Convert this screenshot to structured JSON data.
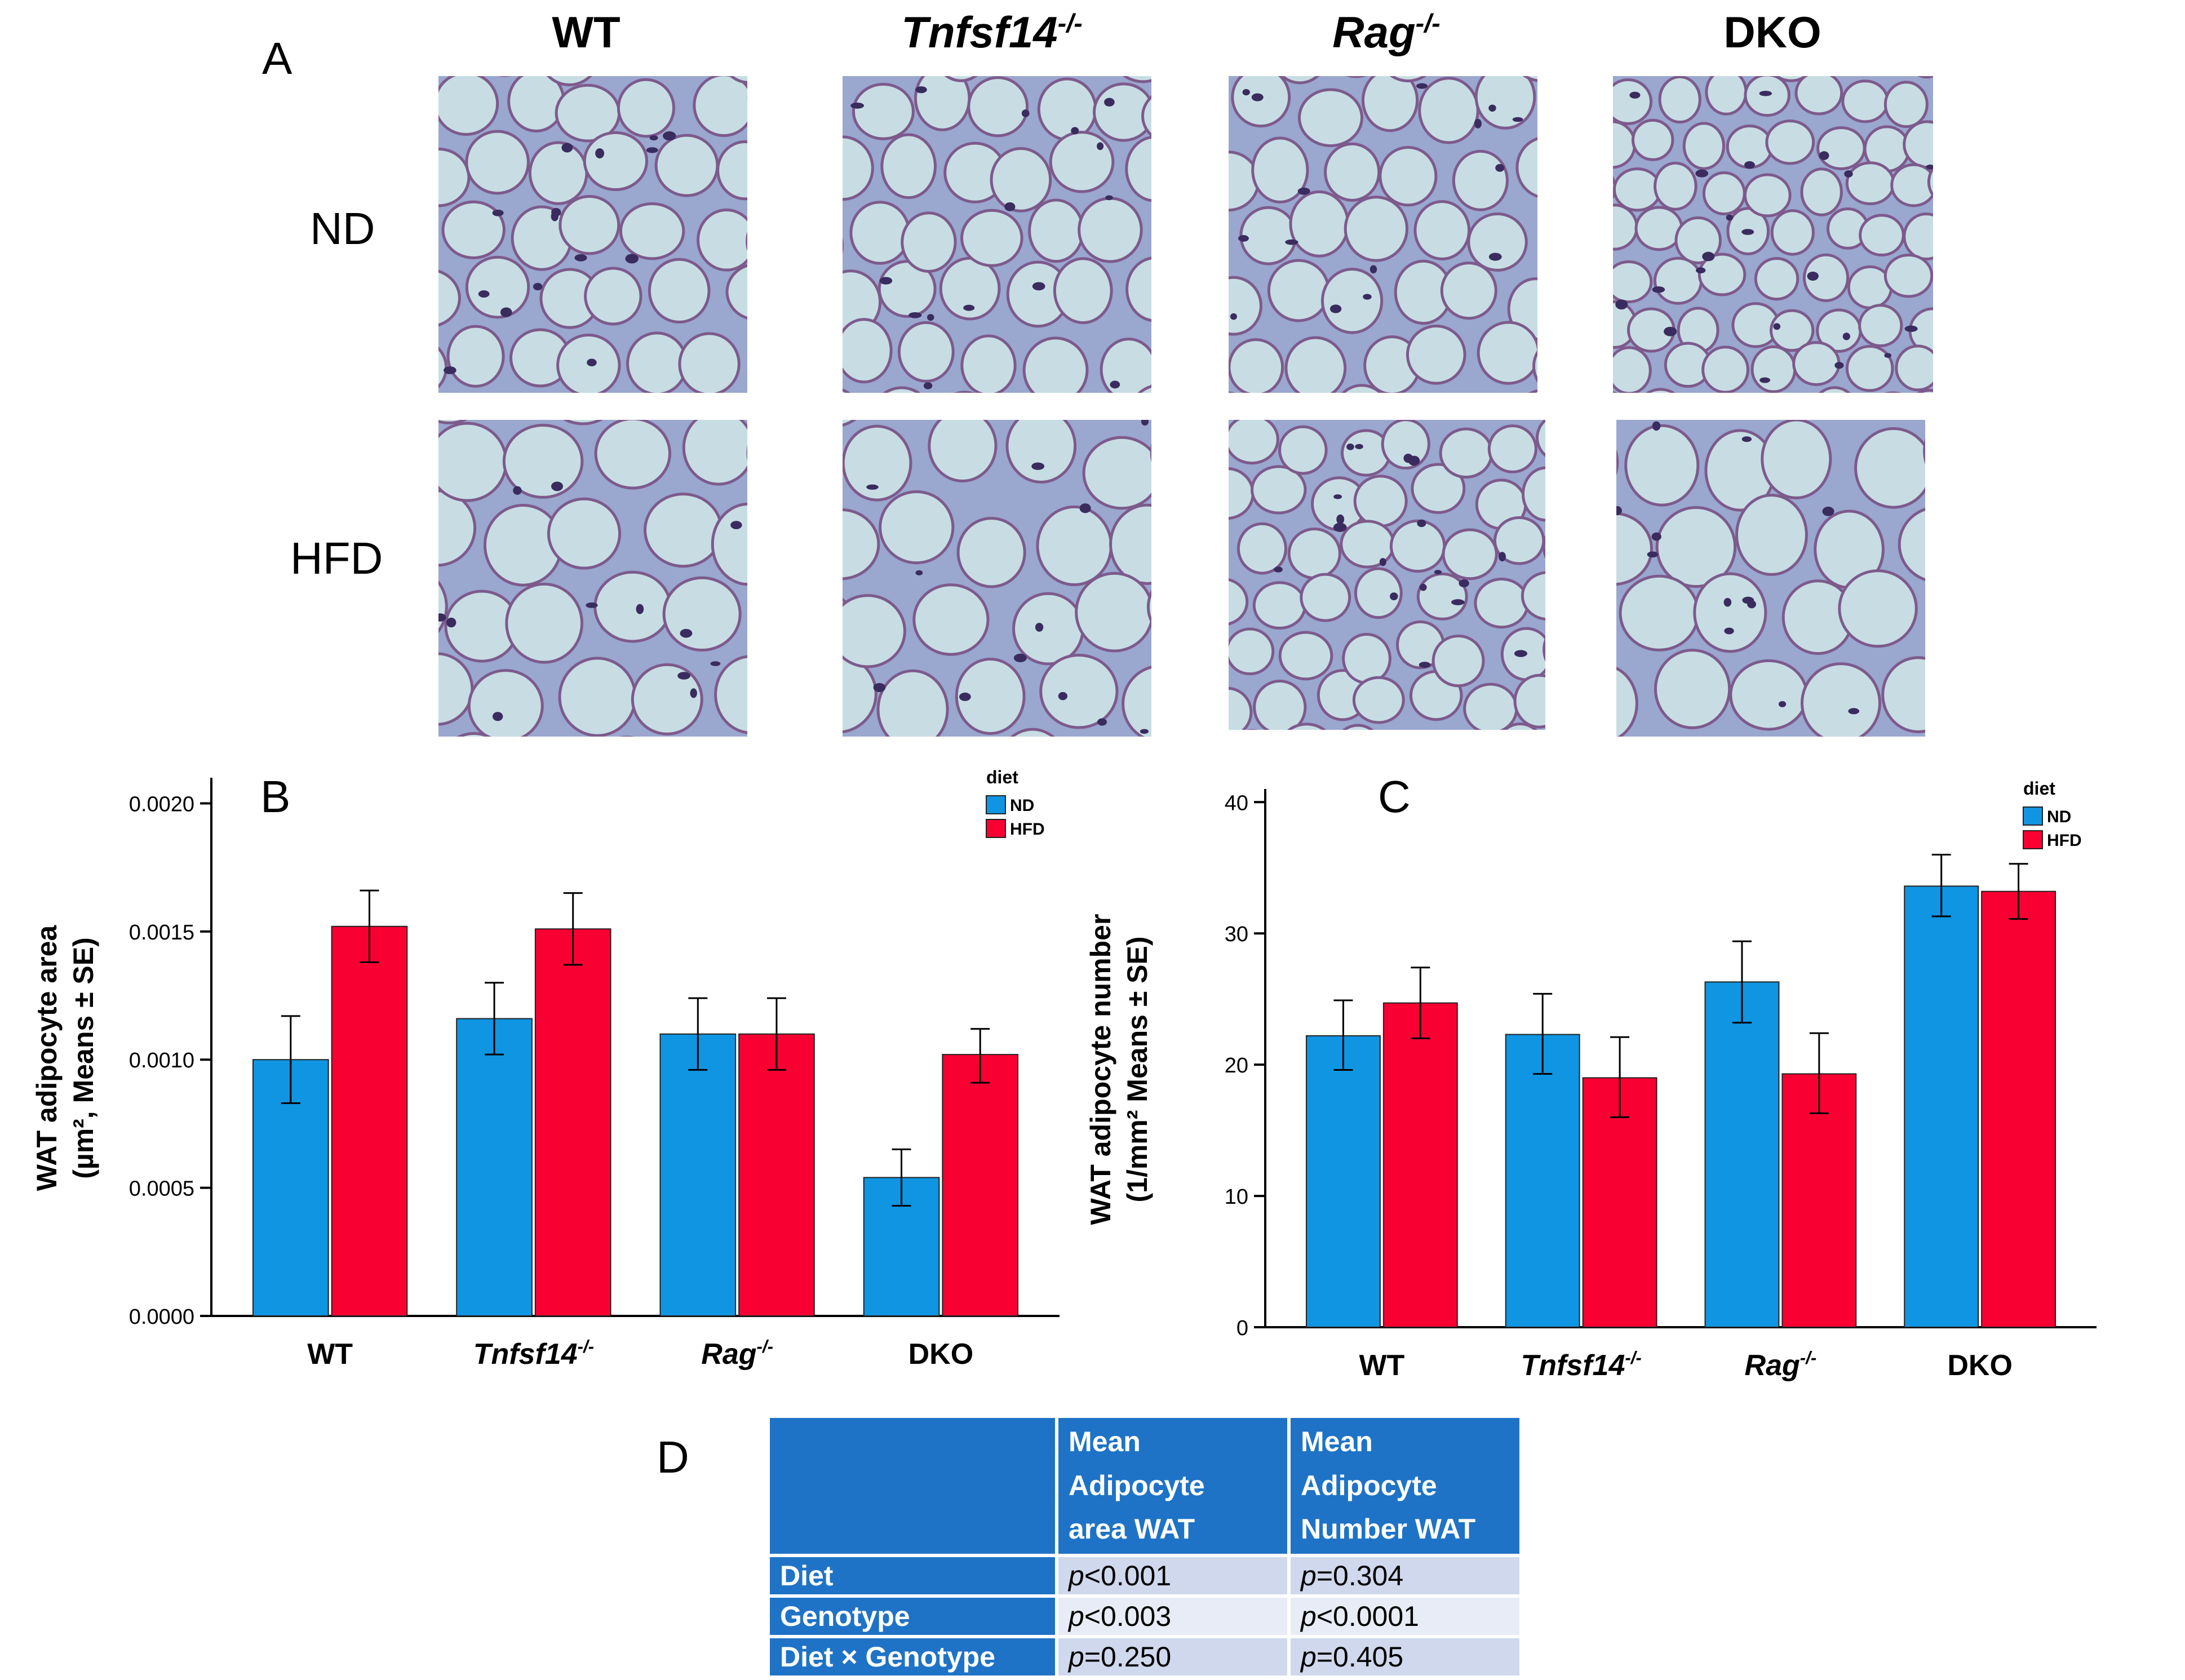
{
  "panel_labels": {
    "a": "A",
    "b": "B",
    "c": "C",
    "d": "D"
  },
  "panel_a": {
    "columns": [
      {
        "base": "WT",
        "sup": "",
        "italic": false
      },
      {
        "base": "Tnfsf14",
        "sup": "-/-",
        "italic": true
      },
      {
        "base": "Rag",
        "sup": "-/-",
        "italic": true
      },
      {
        "base": "DKO",
        "sup": "",
        "italic": false
      }
    ],
    "rows": [
      "ND",
      "HFD"
    ]
  },
  "colors": {
    "nd": "#0f95e2",
    "hfd": "#f90032",
    "table_header": "#1f73c6"
  },
  "chart_data": [
    {
      "type": "bar",
      "panel": "B",
      "title": "",
      "ylabel_line1": "WAT adipocyte area",
      "ylabel_line2": "(µm², Means ± SE)",
      "ylim": [
        0,
        0.0021
      ],
      "yticks": [
        0,
        0.0005,
        0.001,
        0.0015,
        0.002
      ],
      "ytick_labels": [
        "0.0000",
        "0.0005",
        "0.0010",
        "0.0015",
        "0.0020"
      ],
      "categories": [
        {
          "base": "WT",
          "sup": "",
          "italic": false
        },
        {
          "base": "Tnfsf14",
          "sup": "-/-",
          "italic": true
        },
        {
          "base": "Rag",
          "sup": "-/-",
          "italic": true
        },
        {
          "base": "DKO",
          "sup": "",
          "italic": false
        }
      ],
      "legend_title": "diet",
      "legend_position": "top-right",
      "series": [
        {
          "name": "ND",
          "values": [
            0.001,
            0.00116,
            0.0011,
            0.00054
          ],
          "err_low": [
            0.00083,
            0.00102,
            0.00096,
            0.00043
          ],
          "err_high": [
            0.00117,
            0.0013,
            0.00124,
            0.00065
          ]
        },
        {
          "name": "HFD",
          "values": [
            0.00152,
            0.00151,
            0.0011,
            0.00102
          ],
          "err_low": [
            0.00138,
            0.00137,
            0.00096,
            0.00091
          ],
          "err_high": [
            0.00166,
            0.00165,
            0.00124,
            0.00112
          ]
        }
      ]
    },
    {
      "type": "bar",
      "panel": "C",
      "title": "",
      "ylabel_line1": "WAT adipocyte number",
      "ylabel_line2": "(1/mm² Means ± SE)",
      "ylim": [
        0,
        41
      ],
      "yticks": [
        0,
        10,
        20,
        30,
        40
      ],
      "ytick_labels": [
        "0",
        "10",
        "20",
        "30",
        "40"
      ],
      "categories": [
        {
          "base": "WT",
          "sup": "",
          "italic": false
        },
        {
          "base": "Tnfsf14",
          "sup": "-/-",
          "italic": true
        },
        {
          "base": "Rag",
          "sup": "-/-",
          "italic": true
        },
        {
          "base": "DKO",
          "sup": "",
          "italic": false
        }
      ],
      "legend_title": "diet",
      "legend_position": "top-right",
      "series": [
        {
          "name": "ND",
          "values": [
            22.2,
            22.3,
            26.3,
            33.6
          ],
          "err_low": [
            19.6,
            19.3,
            23.2,
            31.3
          ],
          "err_high": [
            24.9,
            25.4,
            29.4,
            36.0
          ]
        },
        {
          "name": "HFD",
          "values": [
            24.7,
            19.0,
            19.3,
            33.2
          ],
          "err_low": [
            22.0,
            16.0,
            16.3,
            31.1
          ],
          "err_high": [
            27.4,
            22.1,
            22.4,
            35.3
          ]
        }
      ]
    }
  ],
  "table": {
    "col_headers": [
      "",
      "Mean Adipocyte area WAT",
      "Mean Adipocyte Number WAT"
    ],
    "rows": [
      {
        "label": "Diet",
        "area_p": "p",
        "area_v": "<0.001",
        "num_p": "p",
        "num_v": "=0.304"
      },
      {
        "label": "Genotype",
        "area_p": "p",
        "area_v": "<0.003",
        "num_p": "p",
        "num_v": "<0.0001"
      },
      {
        "label": "Diet × Genotype",
        "area_p": "p",
        "area_v": "=0.250",
        "num_p": "p",
        "num_v": "=0.405"
      }
    ]
  }
}
